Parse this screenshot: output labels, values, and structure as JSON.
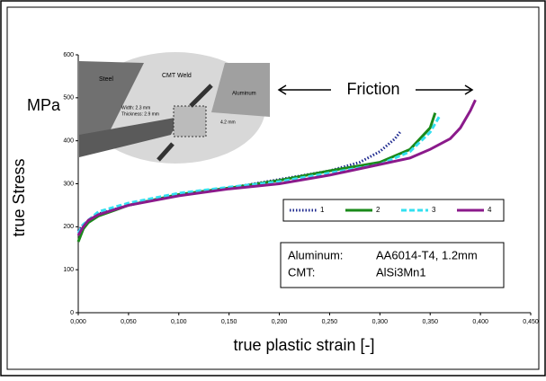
{
  "chart_data": {
    "type": "line",
    "ylabel": "true Stress",
    "xlabel": "true plastic strain [-]",
    "unit_label": "MPa",
    "annotation": "Friction",
    "info_box": [
      [
        "Aluminum:",
        "AA6014-T4, 1.2mm"
      ],
      [
        "CMT:",
        "AlSi3Mn1"
      ]
    ],
    "inset": {
      "steel": "Steel",
      "weld": "CMT Weld",
      "aluminum": "Aluminum",
      "width": "Width: 2.3 mm",
      "thickness": "Thickness: 2.9 mm",
      "length": "4.2 mm"
    },
    "xlim": [
      0,
      0.45
    ],
    "ylim": [
      0,
      600
    ],
    "xticks": [
      {
        "value": 0,
        "label": "0,000"
      },
      {
        "value": 0.05,
        "label": "0,050"
      },
      {
        "value": 0.1,
        "label": "0,100"
      },
      {
        "value": 0.15,
        "label": "0,150"
      },
      {
        "value": 0.2,
        "label": "0,200"
      },
      {
        "value": 0.25,
        "label": "0,250"
      },
      {
        "value": 0.3,
        "label": "0,300"
      },
      {
        "value": 0.35,
        "label": "0,350"
      },
      {
        "value": 0.4,
        "label": "0,400"
      },
      {
        "value": 0.45,
        "label": "0,450"
      }
    ],
    "yticks": [
      0,
      100,
      200,
      300,
      400,
      500,
      600
    ],
    "series": [
      {
        "name": "1",
        "color": "#1f2a8f",
        "style": "dotted",
        "x": [
          0,
          0.005,
          0.02,
          0.05,
          0.1,
          0.15,
          0.2,
          0.25,
          0.28,
          0.3,
          0.315,
          0.32
        ],
        "values": [
          190,
          205,
          230,
          250,
          275,
          290,
          310,
          330,
          350,
          375,
          405,
          420
        ]
      },
      {
        "name": "2",
        "color": "#1a8a1a",
        "style": "solid",
        "x": [
          0,
          0.005,
          0.01,
          0.02,
          0.05,
          0.1,
          0.15,
          0.2,
          0.25,
          0.3,
          0.33,
          0.35,
          0.355
        ],
        "values": [
          165,
          195,
          210,
          225,
          250,
          275,
          290,
          308,
          330,
          350,
          380,
          430,
          465
        ]
      },
      {
        "name": "3",
        "color": "#33e0f0",
        "style": "dashed",
        "x": [
          0,
          0.005,
          0.02,
          0.05,
          0.1,
          0.15,
          0.2,
          0.25,
          0.3,
          0.33,
          0.35,
          0.36
        ],
        "values": [
          185,
          205,
          235,
          255,
          278,
          292,
          305,
          325,
          345,
          375,
          420,
          460
        ]
      },
      {
        "name": "4",
        "color": "#8b1a8b",
        "style": "solid",
        "x": [
          0,
          0.005,
          0.01,
          0.02,
          0.05,
          0.1,
          0.15,
          0.2,
          0.25,
          0.3,
          0.33,
          0.35,
          0.37,
          0.38,
          0.39,
          0.395
        ],
        "values": [
          180,
          200,
          215,
          228,
          250,
          272,
          288,
          300,
          320,
          345,
          360,
          380,
          405,
          430,
          470,
          495
        ]
      }
    ]
  }
}
